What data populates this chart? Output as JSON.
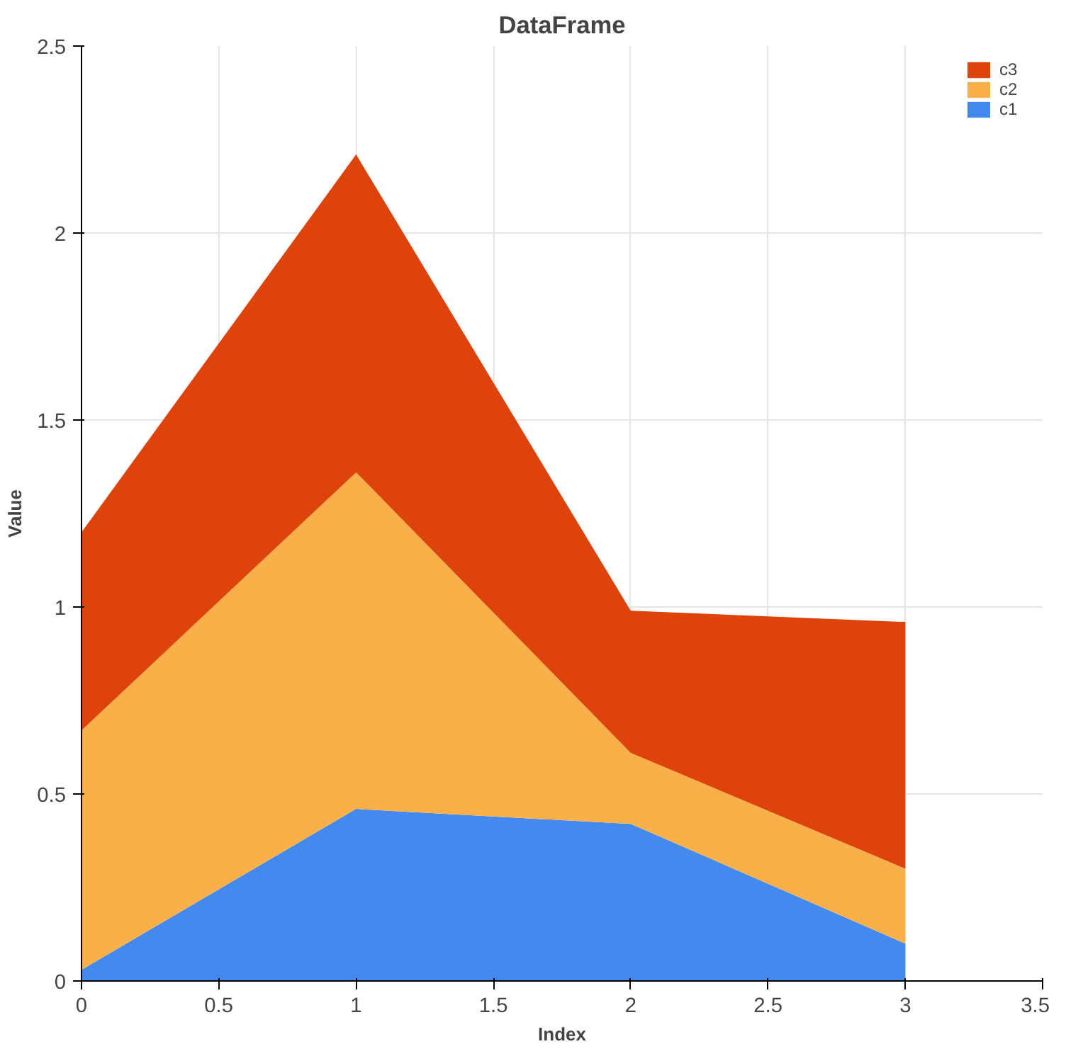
{
  "chart_data": {
    "type": "area",
    "title": "DataFrame",
    "xlabel": "Index",
    "ylabel": "Value",
    "stacked": true,
    "x": [
      0,
      1,
      2,
      3
    ],
    "series": [
      {
        "name": "c1",
        "color": "#448aee",
        "values": [
          0.03,
          0.46,
          0.42,
          0.1
        ]
      },
      {
        "name": "c2",
        "color": "#f9b048",
        "values": [
          0.64,
          0.9,
          0.19,
          0.2
        ]
      },
      {
        "name": "c3",
        "color": "#dd430b",
        "values": [
          0.53,
          0.85,
          0.38,
          0.66
        ]
      }
    ],
    "xlim": [
      0,
      3.5
    ],
    "xticks": [
      0,
      0.5,
      1,
      1.5,
      2,
      2.5,
      3,
      3.5
    ],
    "ylim": [
      0,
      2.5
    ],
    "yticks": [
      0,
      0.5,
      1,
      1.5,
      2,
      2.5
    ],
    "grid": true,
    "legend": "top right"
  }
}
